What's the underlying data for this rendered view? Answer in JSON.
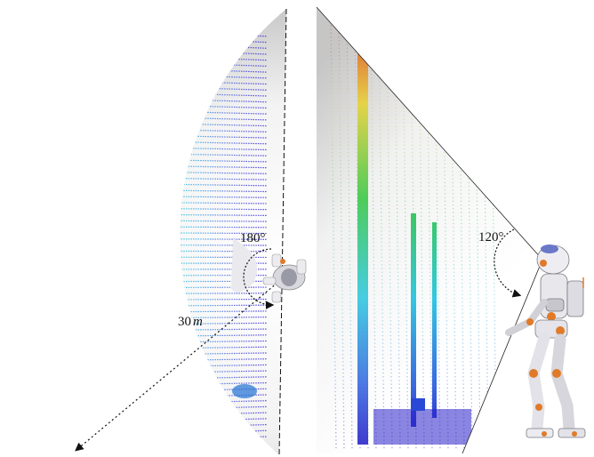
{
  "left_panel": {
    "fov_label": "180°",
    "range_value": "30",
    "range_unit": "m"
  },
  "right_panel": {
    "fov_label": "120°"
  },
  "colors": {
    "near_point": "#3a2fd6",
    "mid_point": "#33c8e0",
    "far_mid_point": "#3cc84a",
    "farther_point": "#e6d23a",
    "farthest_point": "#e0381e",
    "shade_dark": "#b8b8b8",
    "shade_light": "#ffffff",
    "robot_body": "#e8e8ea",
    "robot_accent": "#e07a28"
  }
}
